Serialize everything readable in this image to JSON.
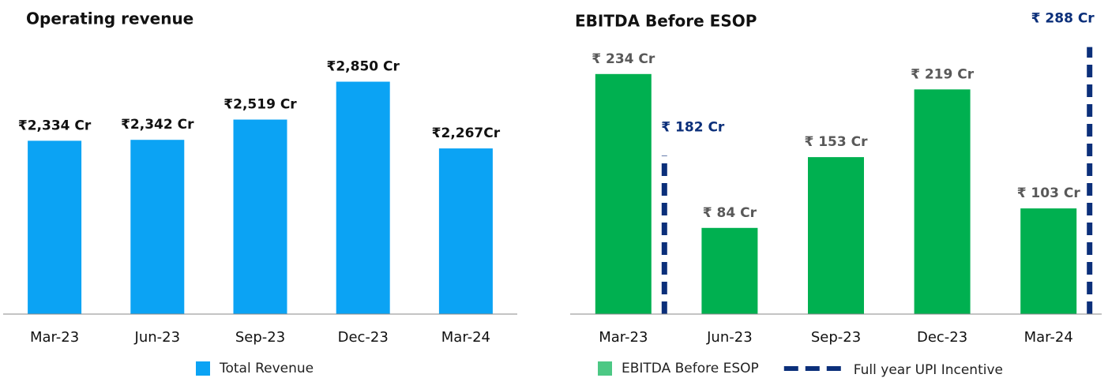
{
  "chart_data": [
    {
      "type": "bar",
      "title": "Operating revenue",
      "categories": [
        "Mar-23",
        "Jun-23",
        "Sep-23",
        "Dec-23",
        "Mar-24"
      ],
      "series": [
        {
          "name": "Total Revenue",
          "color": "#0ba3f4",
          "style": "bar",
          "values": [
            2334,
            2342,
            2519,
            2850,
            2267
          ],
          "value_labels": [
            "₹2,334 Cr",
            "₹2,342 Cr",
            "₹2,519 Cr",
            "₹2,850 Cr",
            "₹2,267Cr"
          ]
        }
      ],
      "ylim": [
        820,
        3150
      ],
      "label_color": "#111111"
    },
    {
      "type": "bar",
      "title": "EBITDA Before ESOP",
      "categories": [
        "Mar-23",
        "Jun-23",
        "Sep-23",
        "Dec-23",
        "Mar-24"
      ],
      "series": [
        {
          "name": "EBITDA Before ESOP",
          "color": "#00b050",
          "style": "bar",
          "values": [
            234,
            84,
            153,
            219,
            103
          ],
          "value_labels": [
            "₹ 234 Cr",
            "₹ 84 Cr",
            "₹ 153 Cr",
            "₹ 219 Cr",
            "₹ 103 Cr"
          ]
        },
        {
          "name": "Full year UPI Incentive",
          "color": "#0b2f7a",
          "style": "dashed",
          "values": [
            182,
            null,
            null,
            null,
            288
          ],
          "value_labels": [
            "₹ 182 Cr",
            null,
            null,
            null,
            "₹ 288 Cr"
          ]
        }
      ],
      "ylim": [
        0,
        300
      ],
      "label_color": "#595959"
    }
  ]
}
